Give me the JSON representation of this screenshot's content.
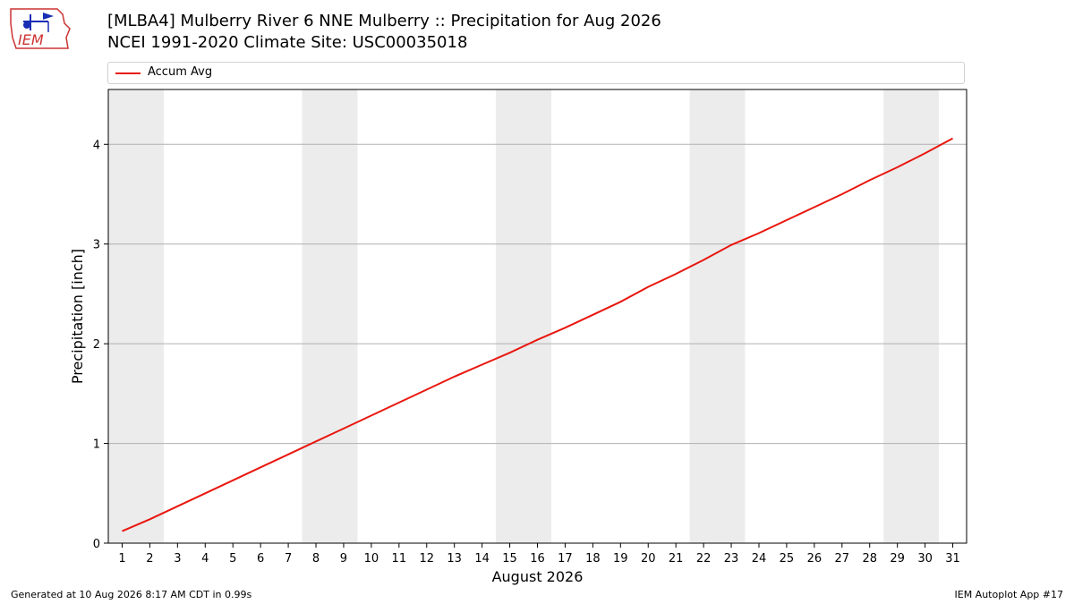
{
  "header": {
    "title_line1": "[MLBA4] Mulberry River 6 NNE Mulberry :: Precipitation for Aug 2026",
    "title_line2": "NCEI 1991-2020 Climate Site: USC00035018",
    "logo_icon": "iem-logo-icon",
    "logo_text": "IEM"
  },
  "footer": {
    "generated": "Generated at 10 Aug 2026 8:17 AM CDT in 0.99s",
    "app": "IEM Autoplot App #17"
  },
  "chart_data": {
    "type": "line",
    "xlabel": "August 2026",
    "ylabel": "Precipitation [inch]",
    "x": [
      1,
      2,
      3,
      4,
      5,
      6,
      7,
      8,
      9,
      10,
      11,
      12,
      13,
      14,
      15,
      16,
      17,
      18,
      19,
      20,
      21,
      22,
      23,
      24,
      25,
      26,
      27,
      28,
      29,
      30,
      31
    ],
    "xlim": [
      0.5,
      31.5
    ],
    "ylim": [
      0,
      4.55
    ],
    "yticks": [
      0,
      1,
      2,
      3,
      4
    ],
    "grid_y": true,
    "legend_position": "top",
    "series": [
      {
        "name": "Accum Avg",
        "color": "#e8170f",
        "values": [
          0.12,
          0.24,
          0.37,
          0.5,
          0.63,
          0.76,
          0.89,
          1.02,
          1.15,
          1.28,
          1.41,
          1.54,
          1.67,
          1.79,
          1.91,
          2.04,
          2.16,
          2.29,
          2.42,
          2.57,
          2.7,
          2.84,
          2.99,
          3.11,
          3.24,
          3.37,
          3.5,
          3.64,
          3.77,
          3.91,
          4.06
        ]
      }
    ],
    "weekend_shading": [
      [
        0.5,
        2.5
      ],
      [
        7.5,
        9.5
      ],
      [
        14.5,
        16.5
      ],
      [
        21.5,
        23.5
      ],
      [
        28.5,
        30.5
      ]
    ],
    "shade_color": "#ececec"
  }
}
